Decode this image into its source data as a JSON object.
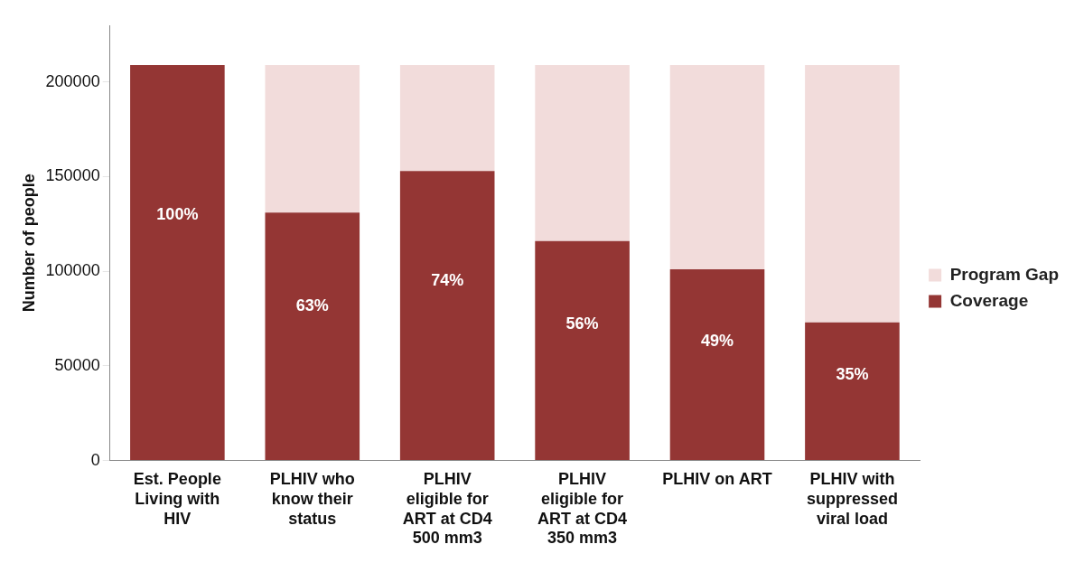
{
  "chart_data": {
    "type": "bar",
    "stacked": true,
    "ylabel": "Number of people",
    "categories": [
      "Est. People Living with HIV",
      "PLHIV who know their status",
      "PLHIV eligible for ART at CD4 500 mm3",
      "PLHIV eligible for ART at CD4 350 mm3",
      "PLHIV on ART",
      "PLHIV with suppressed viral load"
    ],
    "series": [
      {
        "name": "Coverage",
        "color": "#943634",
        "values": [
          209000,
          131000,
          153000,
          116000,
          101000,
          73000
        ]
      },
      {
        "name": "Program Gap",
        "color": "#f2dcdb",
        "values": [
          0,
          78000,
          56000,
          93000,
          108000,
          136000
        ]
      }
    ],
    "annotations": [
      "100%",
      "63%",
      "74%",
      "56%",
      "49%",
      "35%"
    ],
    "ylim": [
      0,
      230000
    ],
    "yticks": [
      0,
      50000,
      100000,
      150000,
      200000
    ],
    "grid": false,
    "legend": "right"
  }
}
